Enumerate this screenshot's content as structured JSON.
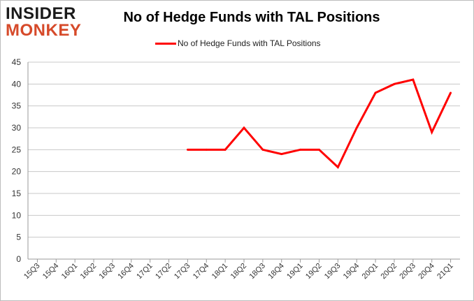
{
  "header": {
    "logo_line1": "INSIDER",
    "logo_line2": "MONKEY",
    "title": "No of Hedge Funds with TAL Positions"
  },
  "legend": {
    "label": "No of Hedge Funds with TAL Positions"
  },
  "colors": {
    "series": "#ff0000",
    "grid": "#c8c8c8",
    "logo_accent": "#d64a2a"
  },
  "chart_data": {
    "type": "line",
    "title": "No of Hedge Funds with TAL Positions",
    "xlabel": "",
    "ylabel": "",
    "ylim": [
      0,
      45
    ],
    "yticks": [
      0,
      5,
      10,
      15,
      20,
      25,
      30,
      35,
      40,
      45
    ],
    "grid": true,
    "legend_position": "top-center",
    "categories": [
      "15Q3",
      "15Q4",
      "16Q1",
      "16Q2",
      "16Q3",
      "16Q4",
      "17Q1",
      "17Q2",
      "17Q3",
      "17Q4",
      "18Q1",
      "18Q2",
      "18Q3",
      "18Q4",
      "19Q1",
      "19Q2",
      "19Q3",
      "19Q4",
      "20Q1",
      "20Q2",
      "20Q3",
      "20Q4",
      "21Q1"
    ],
    "series": [
      {
        "name": "No of Hedge Funds with TAL Positions",
        "values": [
          null,
          null,
          null,
          null,
          null,
          null,
          null,
          null,
          25,
          25,
          25,
          30,
          25,
          24,
          25,
          25,
          21,
          30,
          38,
          40,
          41,
          29,
          38
        ]
      }
    ]
  }
}
